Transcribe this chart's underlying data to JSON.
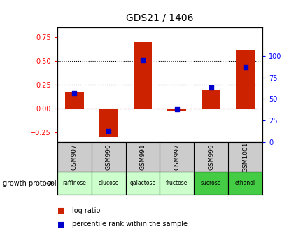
{
  "title": "GDS21 / 1406",
  "samples": [
    "GSM907",
    "GSM990",
    "GSM991",
    "GSM997",
    "GSM999",
    "GSM1001"
  ],
  "protocols": [
    "raffinose",
    "glucose",
    "galactose",
    "fructose",
    "sucrose",
    "ethanol"
  ],
  "protocol_colors": [
    "#ccffcc",
    "#ccffcc",
    "#ccffcc",
    "#ccffcc",
    "#44cc44",
    "#44cc44"
  ],
  "log_ratios": [
    0.18,
    -0.3,
    0.7,
    -0.02,
    0.2,
    0.62
  ],
  "percentile_ranks": [
    57,
    13,
    95,
    38,
    63,
    87
  ],
  "bar_color": "#cc2200",
  "dot_color": "#0000cc",
  "ylim_left": [
    -0.35,
    0.85
  ],
  "ylim_right": [
    0,
    133
  ],
  "yticks_left": [
    -0.25,
    0.0,
    0.25,
    0.5,
    0.75
  ],
  "yticks_right": [
    0,
    25,
    50,
    75,
    100
  ],
  "hlines": [
    0.25,
    0.5
  ],
  "background_color": "#ffffff"
}
